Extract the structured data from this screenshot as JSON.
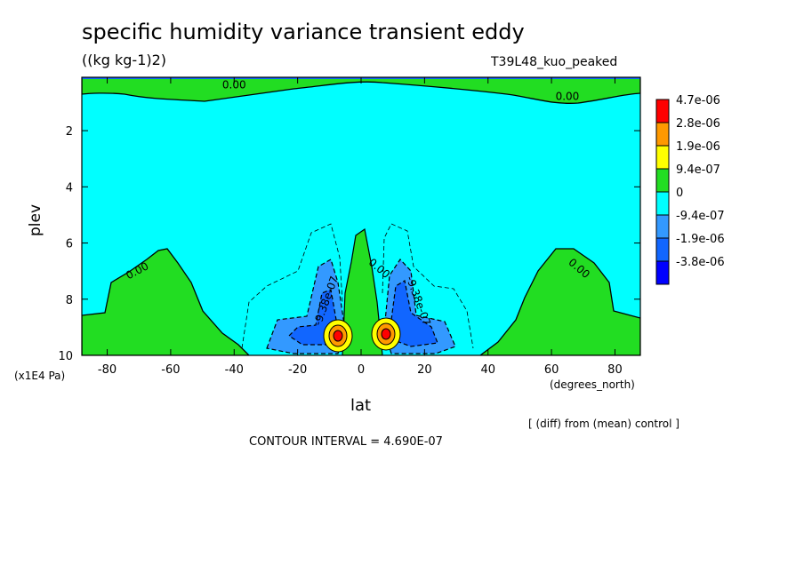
{
  "chart_data": {
    "type": "heatmap",
    "title": "specific humidity variance transient eddy",
    "units": "((kg kg-1)2)",
    "run_label": "T39L48_kuo_peaked",
    "xlabel": "lat",
    "xunits": "(degrees_north)",
    "ylabel": "plev",
    "yunits": "(x1E4 Pa)",
    "note": "[ (diff) from (mean) control ]",
    "contour_interval": "CONTOUR INTERVAL = 4.690E-07",
    "xlim": [
      -88,
      88
    ],
    "ylim": [
      10,
      0.1
    ],
    "x_ticks": [
      "-80",
      "-60",
      "-40",
      "-20",
      "0",
      "20",
      "40",
      "60",
      "80"
    ],
    "x_tick_values": [
      -80,
      -60,
      -40,
      -20,
      0,
      20,
      40,
      60,
      80
    ],
    "y_ticks": [
      "2",
      "4",
      "6",
      "8",
      "10"
    ],
    "y_tick_values": [
      2,
      4,
      6,
      8,
      10
    ],
    "legend": {
      "placement": "right",
      "labels": [
        "4.7e-06",
        "2.8e-06",
        "1.9e-06",
        "9.4e-07",
        "0",
        "-9.4e-07",
        "-1.9e-06",
        "-3.8e-06"
      ],
      "colors": [
        "#ff0000",
        "#ff9900",
        "#ffff00",
        "#22dd22",
        "#00ffff",
        "#3399ff",
        "#1166ff",
        "#0000ff"
      ]
    },
    "contour_labels": [
      {
        "text": "0.00",
        "lat": -40,
        "plev": 0.5
      },
      {
        "text": "0.00",
        "lat": 65,
        "plev": 0.9
      },
      {
        "text": "0.00",
        "lat": -70,
        "plev": 7.1
      },
      {
        "text": "0.00",
        "lat": 68,
        "plev": 7.0
      },
      {
        "text": "-9.38e-07",
        "lat": -10,
        "plev": 8.1
      },
      {
        "text": "0.00",
        "lat": 5,
        "plev": 7.0
      },
      {
        "text": "-9.38e-07",
        "lat": 17,
        "plev": 8.1
      }
    ]
  }
}
